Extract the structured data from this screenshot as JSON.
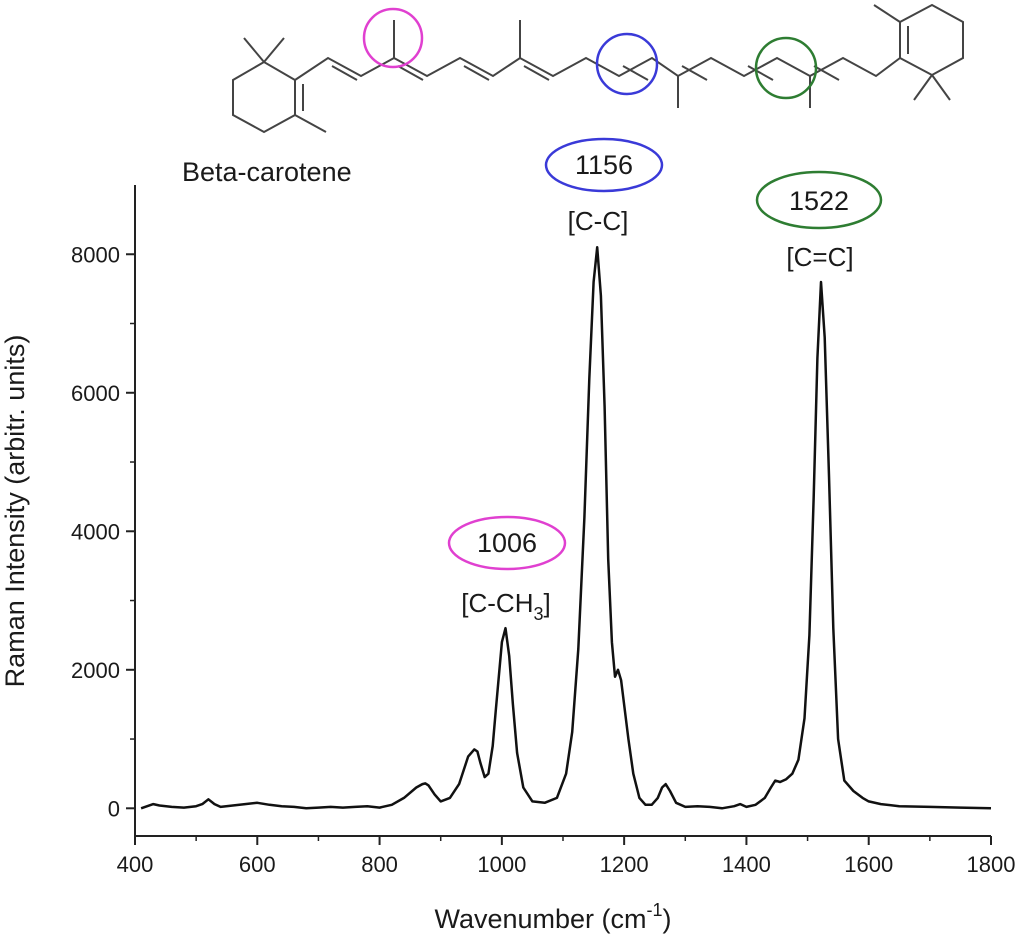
{
  "chart_data": {
    "type": "line",
    "title": "",
    "compound_label": "Beta-carotene",
    "xlabel_prefix": "Wavenumber (cm",
    "xlabel_sup": "-1",
    "xlabel_suffix": ")",
    "ylabel": "Raman Intensity (arbitr. units)",
    "xlim": [
      400,
      1800
    ],
    "ylim": [
      -400,
      9000
    ],
    "xticks": [
      400,
      600,
      800,
      1000,
      1200,
      1400,
      1600,
      1800
    ],
    "yticks": [
      0,
      2000,
      4000,
      6000,
      8000
    ],
    "grid": false,
    "legend": "none",
    "series": [
      {
        "color": "#111111",
        "x": [
          410,
          420,
          430,
          440,
          460,
          480,
          500,
          510,
          520,
          530,
          540,
          560,
          580,
          600,
          620,
          640,
          660,
          680,
          700,
          720,
          740,
          760,
          780,
          800,
          820,
          840,
          860,
          870,
          875,
          880,
          890,
          900,
          915,
          930,
          945,
          955,
          960,
          965,
          972,
          978,
          985,
          990,
          995,
          1000,
          1006,
          1012,
          1018,
          1025,
          1035,
          1050,
          1070,
          1090,
          1105,
          1115,
          1125,
          1135,
          1143,
          1150,
          1156,
          1162,
          1168,
          1174,
          1180,
          1185,
          1190,
          1195,
          1200,
          1207,
          1215,
          1225,
          1235,
          1245,
          1255,
          1262,
          1268,
          1275,
          1285,
          1300,
          1320,
          1340,
          1360,
          1380,
          1390,
          1400,
          1415,
          1430,
          1440,
          1447,
          1455,
          1465,
          1475,
          1485,
          1495,
          1503,
          1510,
          1516,
          1522,
          1528,
          1535,
          1542,
          1550,
          1560,
          1575,
          1590,
          1600,
          1620,
          1650,
          1700,
          1750,
          1800
        ],
        "y": [
          0,
          30,
          60,
          40,
          20,
          10,
          30,
          60,
          130,
          60,
          20,
          40,
          60,
          80,
          50,
          30,
          20,
          0,
          10,
          20,
          10,
          20,
          30,
          10,
          50,
          150,
          300,
          350,
          360,
          330,
          200,
          100,
          150,
          350,
          750,
          850,
          820,
          650,
          450,
          500,
          900,
          1400,
          1900,
          2400,
          2600,
          2200,
          1500,
          800,
          300,
          100,
          80,
          150,
          500,
          1100,
          2300,
          4200,
          6200,
          7600,
          8100,
          7400,
          5800,
          3600,
          2400,
          1900,
          2000,
          1850,
          1500,
          1000,
          500,
          150,
          50,
          50,
          150,
          300,
          350,
          250,
          80,
          20,
          30,
          20,
          0,
          30,
          60,
          20,
          50,
          150,
          300,
          400,
          380,
          420,
          500,
          700,
          1300,
          2500,
          4500,
          6500,
          7600,
          6800,
          4800,
          2600,
          1000,
          400,
          250,
          150,
          100,
          60,
          30,
          20,
          10,
          0
        ]
      }
    ],
    "annotations": [
      {
        "peak": "1006",
        "bond_prefix": "[C-CH",
        "bond_sub": "3",
        "bond_suffix": "]",
        "ring_color": "#e040d0"
      },
      {
        "peak": "1156",
        "bond": "[C-C]",
        "ring_color": "#3a3ad8"
      },
      {
        "peak": "1522",
        "bond": "[C=C]",
        "ring_color": "#2e7d32"
      }
    ]
  }
}
